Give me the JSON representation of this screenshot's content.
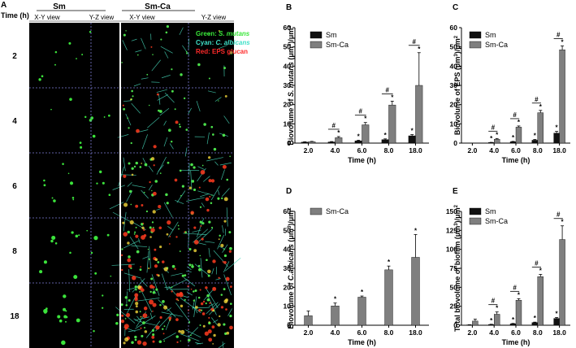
{
  "panel_a": {
    "letter": "A",
    "time_header": "Time (h)",
    "group_sm": "Sm",
    "group_smca": "Sm-Ca",
    "view_xy": "X-Y view",
    "view_yz": "Y-Z view",
    "rows": [
      "2",
      "4",
      "6",
      "8",
      "18"
    ],
    "legend": [
      {
        "text": "Green: ",
        "italic": "S. mutans",
        "color": "#39e639"
      },
      {
        "text": "Cyan: ",
        "italic": "C. albicans",
        "color": "#3fe0c8"
      },
      {
        "text": "Red: EPS glucan",
        "italic": "",
        "color": "#ff2a2a"
      }
    ]
  },
  "chart_data": [
    {
      "panel": "B",
      "type": "bar",
      "categories": [
        "2.0",
        "4.0",
        "6.0",
        "8.0",
        "18.0"
      ],
      "xlabel": "Time (h)",
      "ylabel_parts": [
        [
          "Biovolume of ",
          false
        ],
        [
          "S. mutans",
          true
        ],
        [
          " (μm",
          false
        ],
        [
          "3",
          "sup"
        ],
        [
          ")/μm",
          false
        ],
        [
          "2",
          "sup"
        ]
      ],
      "ylim": [
        0,
        60
      ],
      "yticks": [
        0,
        10,
        20,
        30,
        40,
        50,
        60
      ],
      "legend_placement": "top-left",
      "series": [
        {
          "name": "Sm",
          "color": "#111111",
          "values": [
            0.5,
            0.6,
            1.2,
            1.8,
            3.8
          ],
          "errors": [
            0.2,
            0.2,
            0.3,
            0.4,
            0.6
          ],
          "stars": [
            false,
            false,
            true,
            true,
            true
          ]
        },
        {
          "name": "Sm-Ca",
          "color": "#7f7f7f",
          "values": [
            0.7,
            2.8,
            9.5,
            19.8,
            30
          ],
          "errors": [
            0.2,
            0.6,
            1.2,
            2.0,
            17
          ],
          "stars": [
            false,
            true,
            true,
            true,
            true
          ]
        }
      ],
      "hash_marks": [
        false,
        true,
        true,
        true,
        true
      ]
    },
    {
      "panel": "C",
      "type": "bar",
      "categories": [
        "2.0",
        "4.0",
        "6.0",
        "8.0",
        "18.0"
      ],
      "xlabel": "Time (h)",
      "ylabel_parts": [
        [
          "Biovolume of EPS (μm",
          false
        ],
        [
          "3",
          "sup"
        ],
        [
          ")/μm",
          false
        ],
        [
          "2",
          "sup"
        ]
      ],
      "ylim": [
        0,
        60
      ],
      "yticks": [
        0,
        10,
        20,
        30,
        40,
        50,
        60
      ],
      "legend_placement": "top-left",
      "series": [
        {
          "name": "Sm",
          "color": "#111111",
          "values": [
            0,
            0.3,
            0.7,
            1.5,
            5.2
          ],
          "errors": [
            0,
            0.1,
            0.2,
            0.4,
            0.9
          ],
          "stars": [
            false,
            true,
            true,
            true,
            true
          ]
        },
        {
          "name": "Sm-Ca",
          "color": "#7f7f7f",
          "values": [
            0,
            2.0,
            8.3,
            15.8,
            48.5
          ],
          "errors": [
            0,
            0.4,
            0.6,
            1.2,
            2.0
          ],
          "stars": [
            false,
            true,
            true,
            true,
            true
          ]
        }
      ],
      "hash_marks": [
        false,
        true,
        true,
        true,
        true
      ]
    },
    {
      "panel": "D",
      "type": "bar",
      "categories": [
        "2.0",
        "4.0",
        "6.0",
        "8.0",
        "18.0"
      ],
      "xlabel": "Time (h)",
      "ylabel_parts": [
        [
          "Biovolume of ",
          false
        ],
        [
          "C.albicans",
          true
        ],
        [
          " (μm",
          false
        ],
        [
          "3",
          "sup"
        ],
        [
          ")/μm",
          false
        ],
        [
          "2",
          "sup"
        ]
      ],
      "ylim": [
        0,
        60
      ],
      "yticks": [
        0,
        10,
        20,
        30,
        40,
        50,
        60
      ],
      "legend_placement": "top-left",
      "series": [
        {
          "name": "Sm-Ca",
          "color": "#7f7f7f",
          "values": [
            5.0,
            10.2,
            14.8,
            29.2,
            35.8
          ],
          "errors": [
            2.5,
            1.5,
            0.6,
            2.0,
            12
          ],
          "stars": [
            false,
            true,
            true,
            true,
            true
          ]
        }
      ],
      "hash_marks": [
        false,
        false,
        false,
        false,
        false
      ]
    },
    {
      "panel": "E",
      "type": "bar",
      "categories": [
        "2.0",
        "4.0",
        "6.0",
        "8.0",
        "18.0"
      ],
      "xlabel": "Time (h)",
      "ylabel_parts": [
        [
          "Total biovolume of biofilm (μm",
          false
        ],
        [
          "3",
          "sup"
        ],
        [
          ")/μm",
          false
        ],
        [
          "2",
          "sup"
        ]
      ],
      "ylim": [
        0,
        150
      ],
      "yticks": [
        0,
        25,
        50,
        75,
        100,
        125,
        150
      ],
      "legend_placement": "top-left",
      "series": [
        {
          "name": "Sm",
          "color": "#111111",
          "values": [
            0.5,
            1.0,
            2.0,
            3.5,
            9.0
          ],
          "errors": [
            0.2,
            0.3,
            0.4,
            0.6,
            1.2
          ],
          "stars": [
            false,
            true,
            true,
            true,
            true
          ]
        },
        {
          "name": "Sm-Ca",
          "color": "#7f7f7f",
          "values": [
            5.5,
            14.5,
            33.0,
            64.0,
            113.0
          ],
          "errors": [
            2.5,
            3.0,
            2.0,
            3.0,
            18
          ],
          "stars": [
            false,
            true,
            true,
            true,
            true
          ]
        }
      ],
      "hash_marks": [
        false,
        true,
        true,
        true,
        true
      ]
    }
  ],
  "chart_style": {
    "star": "*",
    "hash": "#"
  },
  "colors": {
    "sm": "#111111",
    "smca": "#7f7f7f",
    "grid_line": "#7d7dd6",
    "micro_bg": "#000000"
  }
}
